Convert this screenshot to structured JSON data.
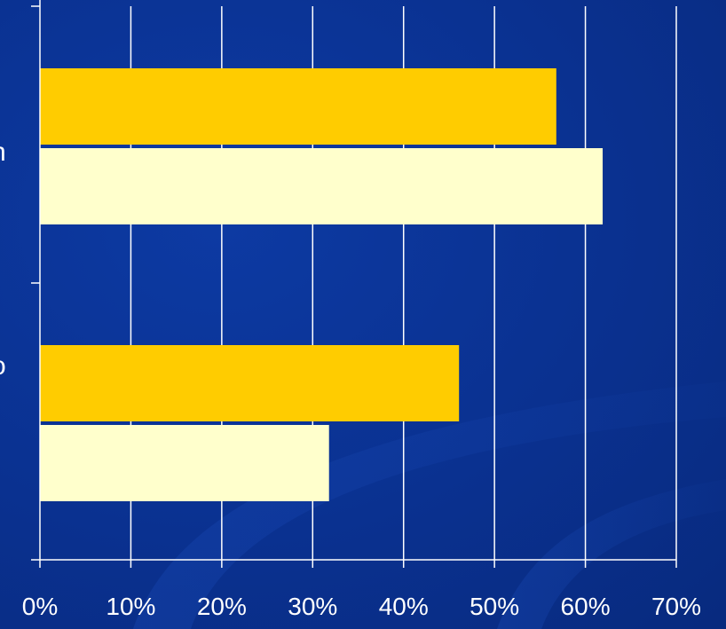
{
  "chart_data": {
    "type": "bar",
    "orientation": "horizontal",
    "categories": [
      "n",
      "o"
    ],
    "series": [
      {
        "color": "#ffcc00",
        "values": [
          56.8,
          46.1
        ]
      },
      {
        "color": "#ffffcc",
        "values": [
          61.9,
          31.8
        ]
      }
    ],
    "x_ticks": [
      "0%",
      "10%",
      "20%",
      "30%",
      "40%",
      "50%",
      "60%",
      "70%"
    ],
    "xlim": [
      0,
      70
    ],
    "grid": true,
    "title": "",
    "xlabel": "",
    "ylabel": ""
  },
  "colors": {
    "background": "#0b3393",
    "gridline": "#ffffff",
    "axis": "#ffffff"
  }
}
